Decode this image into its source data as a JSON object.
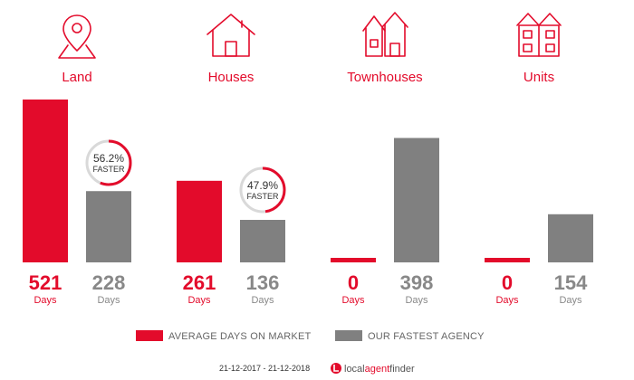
{
  "chart_data": {
    "type": "bar",
    "categories": [
      "Land",
      "Houses",
      "Townhouses",
      "Units"
    ],
    "series": [
      {
        "name": "AVERAGE DAYS ON MARKET",
        "values": [
          521,
          261,
          0,
          0
        ],
        "color": "#e30b2b"
      },
      {
        "name": "OUR FASTEST AGENCY",
        "values": [
          228,
          136,
          398,
          154
        ],
        "color": "#808080"
      }
    ],
    "unit_label": "Days",
    "badges": [
      {
        "category": "Land",
        "percent": "56.2%",
        "word": "FASTER",
        "fraction": 0.562
      },
      {
        "category": "Houses",
        "percent": "47.9%",
        "word": "FASTER",
        "fraction": 0.479
      }
    ],
    "ylim": [
      0,
      521
    ],
    "icons": [
      "map-pin-icon",
      "house-icon",
      "townhouses-icon",
      "units-icon"
    ],
    "legend_position": "bottom",
    "grid": false,
    "date_range": "21-12-2017 - 21-12-2018",
    "brand": {
      "local": "local",
      "agent": "agent",
      "finder": "finder"
    }
  }
}
